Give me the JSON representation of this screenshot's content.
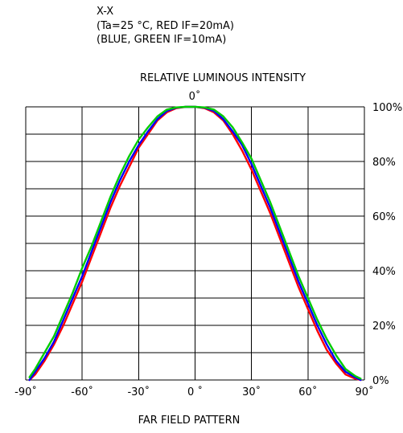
{
  "header": {
    "line1": "X-X",
    "line2": "(Ta=25 °C, RED IF=20mA)",
    "line3": "(BLUE, GREEN   IF=10mA)"
  },
  "chart_data": {
    "type": "line",
    "title": "RELATIVE LUMINOUS INTENSITY",
    "xlabel": "FAR FIELD PATTERN",
    "ylabel": "",
    "xlim": [
      -90,
      90
    ],
    "ylim": [
      0,
      100
    ],
    "grid": true,
    "x_ticks": [
      -90,
      -60,
      -30,
      0,
      30,
      60,
      90
    ],
    "x_tick_labels": [
      "-90˚",
      "-60˚",
      "-30˚",
      "0 ˚",
      "30˚",
      "60˚",
      "90˚"
    ],
    "y_ticks": [
      0,
      20,
      40,
      60,
      80,
      100
    ],
    "y_tick_labels": [
      "0%",
      "20%",
      "40%",
      "60%",
      "80%",
      "100%"
    ],
    "top_angle_label": "0˚",
    "x": [
      -88,
      -85,
      -80,
      -75,
      -70,
      -65,
      -60,
      -55,
      -50,
      -45,
      -40,
      -35,
      -30,
      -25,
      -20,
      -15,
      -10,
      -5,
      0,
      5,
      10,
      15,
      20,
      25,
      30,
      35,
      40,
      45,
      50,
      55,
      60,
      65,
      70,
      75,
      80,
      85,
      88
    ],
    "series": [
      {
        "color": "#ff0000",
        "values": [
          0,
          2,
          7,
          13,
          20,
          28,
          36,
          45,
          54,
          63,
          71,
          78,
          85,
          90,
          95,
          98,
          99.5,
          100,
          100,
          99.5,
          98,
          95,
          90,
          84,
          77,
          69,
          61,
          52,
          43,
          34,
          26,
          18,
          11,
          6,
          2,
          0.5,
          0
        ]
      },
      {
        "color": "#0000ff",
        "values": [
          0,
          3,
          8,
          14,
          22,
          30,
          38,
          47,
          56,
          65,
          73,
          80,
          86,
          91,
          95.5,
          98.5,
          99.7,
          100,
          100,
          99.7,
          98.5,
          95.5,
          91,
          86,
          79,
          71,
          63,
          54,
          45,
          36,
          28,
          20,
          13,
          7,
          3,
          1,
          0
        ]
      },
      {
        "color": "#00cc00",
        "values": [
          1,
          4,
          10,
          16,
          24,
          32,
          41,
          49,
          58,
          67,
          75,
          82,
          88,
          92.5,
          96.5,
          99,
          99.8,
          100,
          100,
          99.8,
          99,
          96.5,
          92.5,
          87,
          81,
          73,
          65,
          56,
          47,
          38,
          30,
          22,
          15,
          9,
          4,
          1.5,
          0.5
        ]
      }
    ]
  }
}
